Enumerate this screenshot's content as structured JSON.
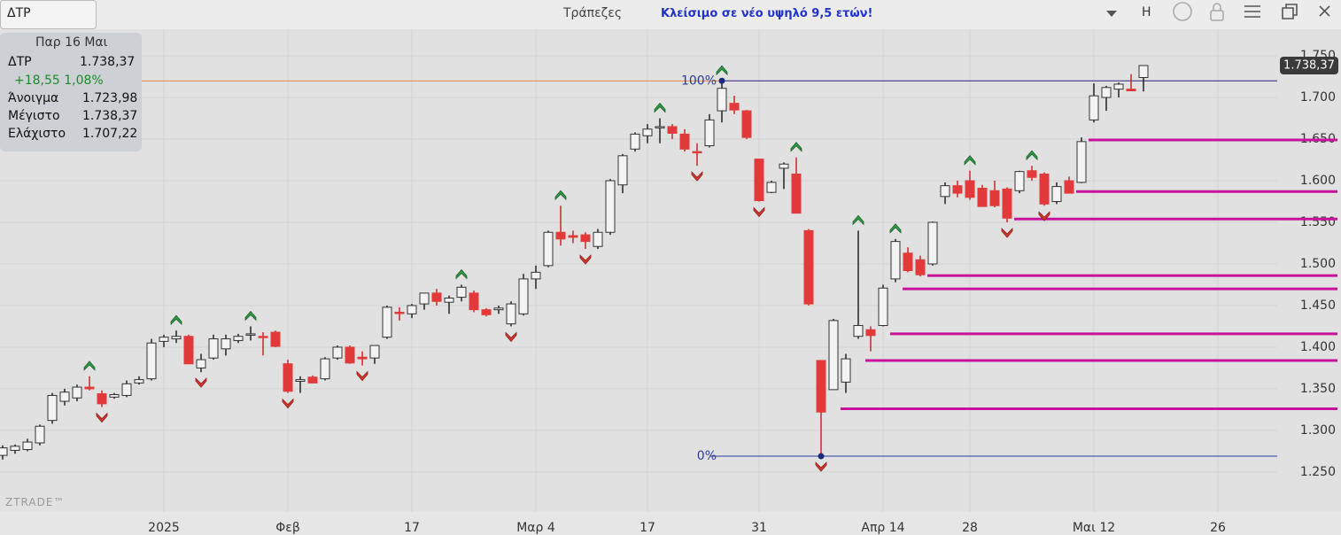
{
  "header": {
    "symbol": "ΔΤΡ",
    "sector": "Τράπεζες",
    "headline": "Κλείσιμο σε νέο υψηλό 9,5 ετών!",
    "mode": "H"
  },
  "info_panel": {
    "date": "Παρ 16 Μαι",
    "symbol": "ΔΤΡ",
    "last": "1.738,37",
    "change": "+18,55 1,08%",
    "rows": [
      [
        "Άνοιγμα",
        "1.723,98"
      ],
      [
        "Μέγιστο",
        "1.738,37"
      ],
      [
        "Ελάχιστο",
        "1.707,22"
      ]
    ]
  },
  "watermark": "ZTRADE™",
  "chart_data": {
    "type": "candlestick",
    "categories": [
      null,
      null,
      null,
      null,
      null,
      null,
      null,
      null,
      null,
      null,
      null,
      null,
      null,
      "2025",
      null,
      null,
      null,
      null,
      null,
      null,
      null,
      null,
      null,
      "Φεβ",
      null,
      null,
      null,
      null,
      null,
      null,
      null,
      null,
      null,
      "17",
      null,
      null,
      null,
      null,
      null,
      null,
      null,
      null,
      null,
      "Μαρ 4",
      null,
      null,
      null,
      null,
      null,
      null,
      null,
      null,
      "17",
      null,
      null,
      null,
      null,
      null,
      null,
      null,
      null,
      "31",
      null,
      null,
      null,
      null,
      null,
      null,
      null,
      null,
      null,
      "Απρ 14",
      null,
      null,
      null,
      null,
      null,
      null,
      "28",
      null,
      null,
      null,
      null,
      null,
      null,
      null,
      null,
      null,
      "Μαι 12",
      null,
      null,
      null,
      null,
      null,
      null,
      null,
      null,
      null,
      "26"
    ],
    "open": [
      1270,
      1276,
      1277,
      1285,
      1312,
      1335,
      1339,
      1352,
      1344,
      1340,
      1342,
      1357,
      1362,
      1407,
      1410,
      1413,
      1375,
      1387,
      1398,
      1408,
      1415,
      1413,
      1418,
      1380,
      1359,
      1364,
      1362,
      1387,
      1400,
      1388,
      1387,
      1412,
      1442,
      1440,
      1452,
      1465,
      1454,
      1460,
      1465,
      1445,
      1445,
      1428,
      1440,
      1482,
      1498,
      1538,
      1534,
      1535,
      1521,
      1538,
      1595,
      1638,
      1654,
      1664,
      1665,
      1656,
      1635,
      1642,
      1684,
      1693,
      1684,
      1626,
      1586,
      1615,
      1608,
      1540,
      1384,
      1349,
      1358,
      1413,
      1421,
      1426,
      1482,
      1513,
      1505,
      1500,
      1581,
      1594,
      1600,
      1591,
      1588,
      1590,
      1588,
      1612,
      1608,
      1575,
      1600,
      1598,
      1673,
      1700,
      1710,
      1710,
      1723.98,
      null,
      null,
      null,
      null,
      null,
      null
    ],
    "high": [
      1282,
      1283,
      1290,
      1307,
      1345,
      1350,
      1355,
      1365,
      1348,
      1345,
      1360,
      1365,
      1410,
      1415,
      1420,
      1415,
      1392,
      1415,
      1415,
      1416,
      1425,
      1418,
      1420,
      1385,
      1365,
      1366,
      1388,
      1402,
      1402,
      1395,
      1402,
      1450,
      1448,
      1452,
      1465,
      1470,
      1462,
      1475,
      1468,
      1447,
      1450,
      1455,
      1488,
      1498,
      1540,
      1570,
      1540,
      1538,
      1542,
      1602,
      1632,
      1658,
      1668,
      1675,
      1668,
      1662,
      1645,
      1680,
      1720,
      1702,
      1685,
      1626,
      1600,
      1622,
      1628,
      1542,
      1384,
      1434,
      1392,
      1540,
      1425,
      1475,
      1530,
      1520,
      1510,
      1551,
      1598,
      1600,
      1612,
      1595,
      1600,
      1592,
      1612,
      1618,
      1610,
      1598,
      1605,
      1652,
      1717,
      1714,
      1718,
      1728,
      1738.37,
      null,
      null,
      null,
      null,
      null,
      null
    ],
    "low": [
      1265,
      1272,
      1275,
      1282,
      1308,
      1330,
      1335,
      1348,
      1328,
      1338,
      1340,
      1355,
      1360,
      1400,
      1405,
      1380,
      1370,
      1385,
      1390,
      1405,
      1408,
      1390,
      1400,
      1345,
      1345,
      1357,
      1360,
      1385,
      1380,
      1378,
      1380,
      1410,
      1432,
      1435,
      1445,
      1450,
      1440,
      1455,
      1442,
      1437,
      1440,
      1425,
      1438,
      1470,
      1496,
      1522,
      1525,
      1518,
      1518,
      1535,
      1585,
      1635,
      1645,
      1645,
      1650,
      1635,
      1618,
      1640,
      1670,
      1680,
      1650,
      1575,
      1585,
      1590,
      1562,
      1450,
      1269,
      1349,
      1345,
      1410,
      1395,
      1425,
      1478,
      1490,
      1485,
      1498,
      1572,
      1580,
      1577,
      1570,
      1568,
      1550,
      1585,
      1600,
      1570,
      1572,
      1585,
      1597,
      1670,
      1684,
      1700,
      1708,
      1707.22,
      null,
      null,
      null,
      null,
      null,
      null
    ],
    "close": [
      1279,
      1281,
      1286,
      1305,
      1342,
      1346,
      1352,
      1350,
      1332,
      1343,
      1356,
      1361,
      1405,
      1412,
      1413,
      1380,
      1385,
      1410,
      1410,
      1413,
      1416,
      1412,
      1401,
      1347,
      1361,
      1357,
      1386,
      1400,
      1381,
      1386,
      1402,
      1448,
      1441,
      1450,
      1465,
      1455,
      1459,
      1472,
      1445,
      1439,
      1447,
      1452,
      1482,
      1490,
      1538,
      1530,
      1532,
      1527,
      1538,
      1600,
      1630,
      1656,
      1662,
      1665,
      1657,
      1638,
      1634,
      1673,
      1711,
      1685,
      1652,
      1576,
      1598,
      1620,
      1561,
      1452,
      1322,
      1432,
      1386,
      1426,
      1414,
      1471,
      1527,
      1492,
      1487,
      1550,
      1594,
      1585,
      1580,
      1569,
      1570,
      1555,
      1611,
      1604,
      1572,
      1593,
      1585,
      1647,
      1702,
      1712,
      1716,
      1708,
      1738.37,
      null,
      null,
      null,
      null,
      null,
      null
    ],
    "up_color": "#f3f3f3",
    "down_color": "#e23a3a",
    "buy_signals": [
      7,
      14,
      20,
      37,
      45,
      53,
      58,
      64,
      69,
      72,
      78,
      83
    ],
    "sell_signals": [
      8,
      16,
      23,
      29,
      41,
      47,
      56,
      61,
      66,
      81,
      84
    ],
    "buy_color": "#2f9a45",
    "sell_color": "#d8352f",
    "levels": [
      {
        "value": 1649,
        "from": 87
      },
      {
        "value": 1587,
        "from": 86
      },
      {
        "value": 1554,
        "from": 81
      },
      {
        "value": 1486,
        "from": 74
      },
      {
        "value": 1470,
        "from": 72
      },
      {
        "value": 1416,
        "from": 71
      },
      {
        "value": 1384,
        "from": 69
      },
      {
        "value": 1326,
        "from": 67
      }
    ],
    "level_color": "#c8129c",
    "fib": {
      "high": 1720,
      "low": 1269,
      "from": 58,
      "high_label": "100%",
      "low_label": "0%",
      "color": "#2a3b9e"
    },
    "prev_close": 1719.82,
    "prev_close_color": "#e8824a",
    "last_price_label": "1.738,37",
    "ylim": [
      1202,
      1782
    ],
    "yticks": [
      {
        "value": 1250,
        "label": "1.250"
      },
      {
        "value": 1300,
        "label": "1.300"
      },
      {
        "value": 1350,
        "label": "1.350"
      },
      {
        "value": 1400,
        "label": "1.400"
      },
      {
        "value": 1450,
        "label": "1.450"
      },
      {
        "value": 1500,
        "label": "1.500"
      },
      {
        "value": 1550,
        "label": "1.550"
      },
      {
        "value": 1600,
        "label": "1.600"
      },
      {
        "value": 1650,
        "label": "1.650"
      },
      {
        "value": 1700,
        "label": "1.700"
      },
      {
        "value": 1750,
        "label": "1.750"
      }
    ],
    "grid": true
  }
}
